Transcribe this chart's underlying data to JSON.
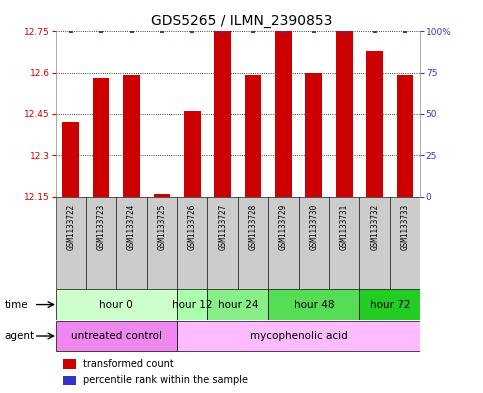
{
  "title": "GDS5265 / ILMN_2390853",
  "samples": [
    "GSM1133722",
    "GSM1133723",
    "GSM1133724",
    "GSM1133725",
    "GSM1133726",
    "GSM1133727",
    "GSM1133728",
    "GSM1133729",
    "GSM1133730",
    "GSM1133731",
    "GSM1133732",
    "GSM1133733"
  ],
  "bar_values": [
    12.42,
    12.58,
    12.59,
    12.16,
    12.46,
    12.75,
    12.59,
    12.75,
    12.6,
    12.75,
    12.68,
    12.59
  ],
  "percentile_values": [
    100,
    100,
    100,
    100,
    100,
    100,
    100,
    100,
    100,
    100,
    100,
    100
  ],
  "bar_bottom": 12.15,
  "ylim_left": [
    12.15,
    12.75
  ],
  "ylim_right": [
    0,
    100
  ],
  "yticks_left": [
    12.15,
    12.3,
    12.45,
    12.6,
    12.75
  ],
  "ytick_labels_left": [
    "12.15",
    "12.3",
    "12.45",
    "12.6",
    "12.75"
  ],
  "yticks_right": [
    0,
    25,
    50,
    75,
    100
  ],
  "ytick_labels_right": [
    "0",
    "25",
    "50",
    "75",
    "100%"
  ],
  "bar_color": "#cc0000",
  "blue_color": "#3333cc",
  "gray_box_color": "#cccccc",
  "time_groups": [
    {
      "label": "hour 0",
      "start": 0,
      "end": 3,
      "color": "#ccffcc"
    },
    {
      "label": "hour 12",
      "start": 4,
      "end": 4,
      "color": "#aaffaa"
    },
    {
      "label": "hour 24",
      "start": 5,
      "end": 6,
      "color": "#88ee88"
    },
    {
      "label": "hour 48",
      "start": 7,
      "end": 9,
      "color": "#55dd55"
    },
    {
      "label": "hour 72",
      "start": 10,
      "end": 11,
      "color": "#22cc22"
    }
  ],
  "agent_groups": [
    {
      "label": "untreated control",
      "start": 0,
      "end": 3,
      "color": "#ee88ee"
    },
    {
      "label": "mycophenolic acid",
      "start": 4,
      "end": 11,
      "color": "#ffbbff"
    }
  ],
  "legend_bar_label": "transformed count",
  "legend_dot_label": "percentile rank within the sample",
  "background_color": "#ffffff",
  "title_fontsize": 10,
  "tick_fontsize": 6.5,
  "sample_fontsize": 5.5,
  "row_fontsize": 7.5
}
